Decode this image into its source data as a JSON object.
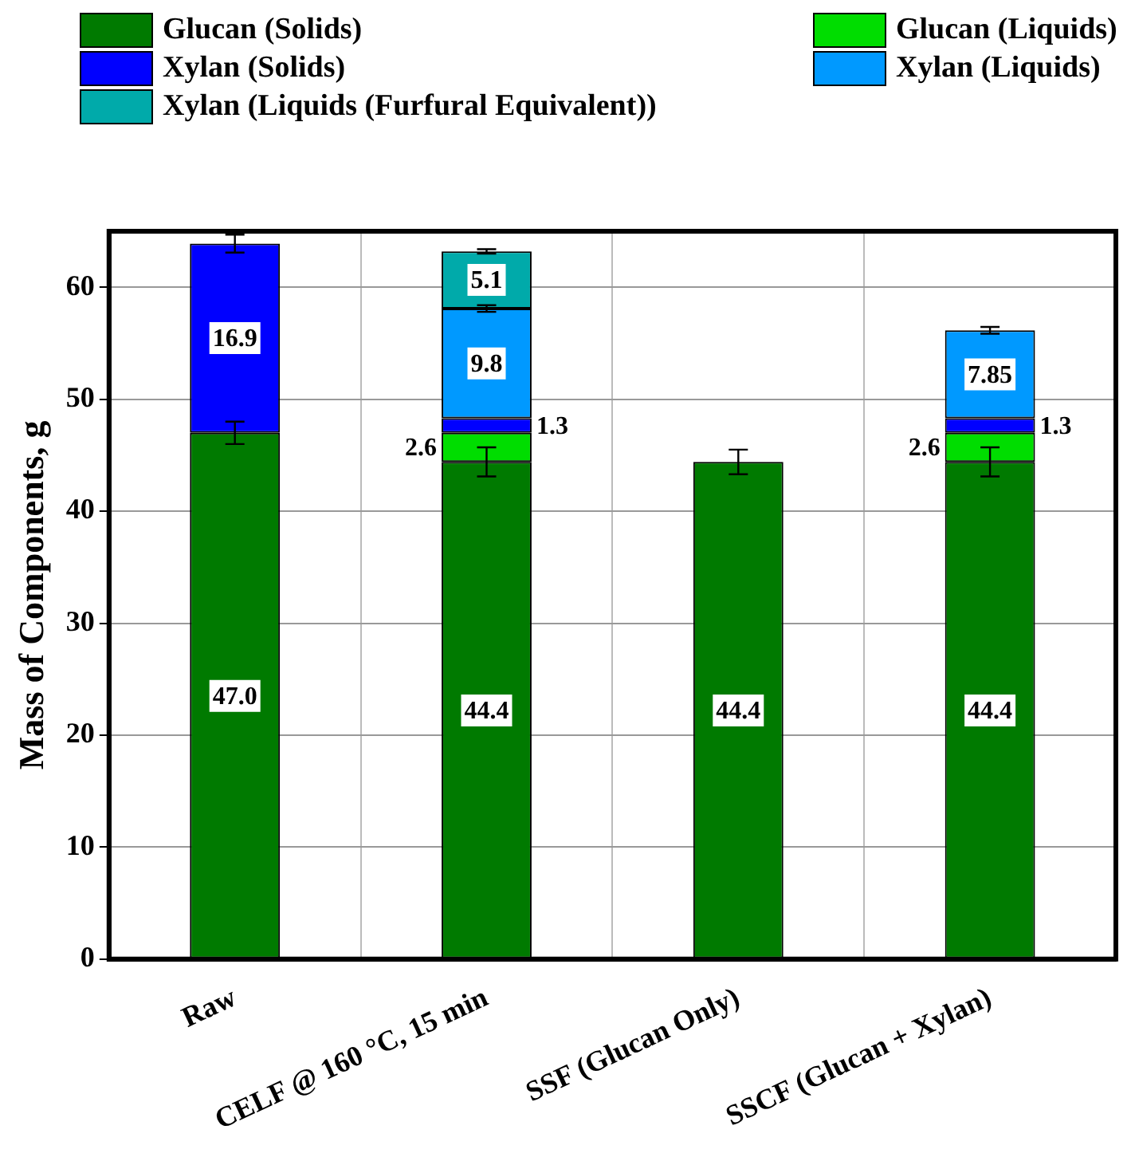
{
  "chart_data": {
    "type": "bar",
    "stacked": true,
    "ylabel": "Mass of Components, g",
    "categories": [
      "Raw",
      "CELF @ 160 °C, 15 min",
      "SSF (Glucan Only)",
      "SSCF (Glucan + Xylan)"
    ],
    "series": [
      {
        "name": "Glucan (Solids)",
        "color": "#007a00",
        "values": [
          47.0,
          44.4,
          44.4,
          44.4
        ],
        "value_labels": [
          "47.0",
          "44.4",
          "44.4",
          "44.4"
        ],
        "errors": [
          1.0,
          1.3,
          1.1,
          1.3
        ]
      },
      {
        "name": "Glucan (Liquids)",
        "color": "#00dd00",
        "values": [
          null,
          2.6,
          null,
          2.6
        ],
        "value_labels": [
          null,
          "2.6",
          null,
          "2.6"
        ]
      },
      {
        "name": "Xylan (Solids)",
        "color": "#0000ff",
        "values": [
          16.9,
          1.3,
          null,
          1.3
        ],
        "value_labels": [
          "16.9",
          "1.3",
          null,
          "1.3"
        ],
        "errors": [
          0.8,
          null,
          null,
          null
        ]
      },
      {
        "name": "Xylan (Liquids)",
        "color": "#0099ff",
        "values": [
          null,
          9.8,
          null,
          7.85
        ],
        "value_labels": [
          null,
          "9.8",
          null,
          "7.85"
        ],
        "errors": [
          null,
          0.3,
          null,
          0.3
        ]
      },
      {
        "name": "Xylan (Liquids (Furfural Equivalent))",
        "color": "#00aaaa",
        "values": [
          null,
          5.1,
          null,
          null
        ],
        "value_labels": [
          null,
          "5.1",
          null,
          null
        ],
        "errors": [
          null,
          0.2,
          null,
          null
        ]
      }
    ],
    "ylim": [
      0,
      65
    ],
    "yticks": [
      0,
      10,
      20,
      30,
      40,
      50,
      60
    ],
    "grid": true,
    "legend": "top"
  }
}
